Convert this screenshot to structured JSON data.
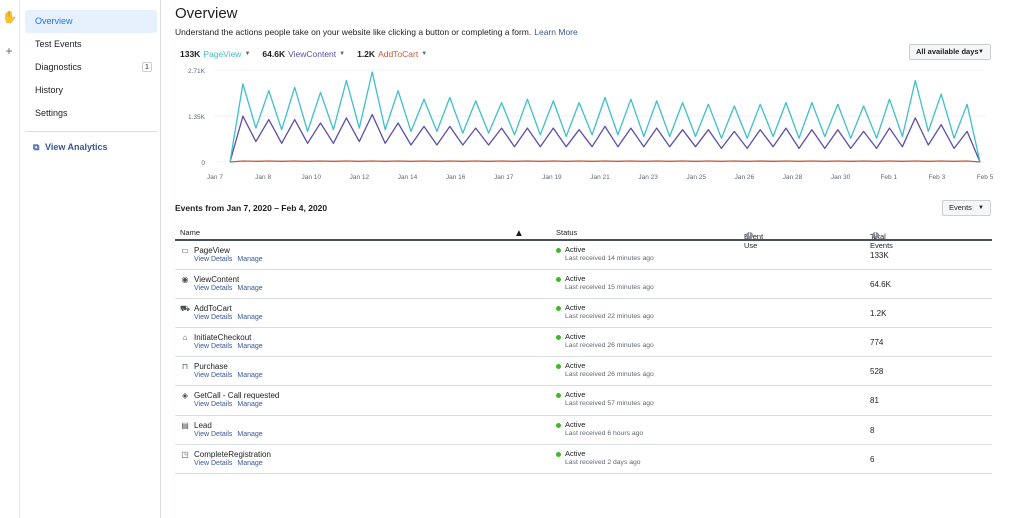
{
  "sidebar": {
    "items": [
      {
        "label": "Overview",
        "active": true
      },
      {
        "label": "Test Events"
      },
      {
        "label": "Diagnostics",
        "badge": "1"
      },
      {
        "label": "History"
      },
      {
        "label": "Settings"
      }
    ],
    "analytics_link": "View Analytics"
  },
  "header": {
    "title": "Overview",
    "subtitle": "Understand the actions people take on your website like clicking a button or completing a form.",
    "learn_more": "Learn More"
  },
  "metrics": [
    {
      "value": "133K",
      "label": "PageView",
      "color": "#3fbfc9"
    },
    {
      "value": "64.6K",
      "label": "ViewContent",
      "color": "#5b4fa8"
    },
    {
      "value": "1.2K",
      "label": "AddToCart",
      "color": "#c85a3c"
    }
  ],
  "date_filter": "All available days",
  "chart_data": {
    "type": "line",
    "y_ticks": [
      "2.71K",
      "1.35K",
      "0"
    ],
    "ylim": [
      0,
      2710
    ],
    "x_ticks": [
      "Jan 7",
      "Jan 8",
      "Jan 10",
      "Jan 12",
      "Jan 14",
      "Jan 16",
      "Jan 17",
      "Jan 19",
      "Jan 21",
      "Jan 23",
      "Jan 25",
      "Jan 26",
      "Jan 28",
      "Jan 30",
      "Feb 1",
      "Feb 3",
      "Feb 5"
    ],
    "series": [
      {
        "name": "PageView",
        "color": "#3fbfc9",
        "values": [
          0,
          2300,
          1000,
          2100,
          950,
          2200,
          900,
          2050,
          950,
          2400,
          1000,
          2650,
          950,
          2100,
          900,
          1850,
          900,
          1900,
          850,
          1800,
          850,
          1750,
          800,
          1850,
          800,
          1800,
          750,
          1750,
          800,
          1900,
          800,
          1850,
          750,
          1800,
          750,
          1750,
          750,
          1700,
          700,
          1650,
          700,
          1700,
          750,
          1750,
          700,
          1750,
          750,
          1700,
          700,
          1650,
          700,
          1850,
          750,
          2400,
          900,
          2000,
          700,
          1700,
          0
        ]
      },
      {
        "name": "ViewContent",
        "color": "#5b4fa8",
        "values": [
          0,
          1350,
          600,
          1250,
          550,
          1250,
          550,
          1150,
          550,
          1300,
          600,
          1400,
          550,
          1150,
          500,
          1050,
          500,
          1050,
          500,
          1000,
          500,
          1000,
          450,
          1000,
          450,
          1000,
          450,
          950,
          450,
          1050,
          450,
          1000,
          450,
          1000,
          450,
          950,
          450,
          950,
          400,
          900,
          400,
          950,
          450,
          1000,
          400,
          950,
          400,
          950,
          400,
          900,
          400,
          1000,
          450,
          1300,
          500,
          1100,
          400,
          900,
          0
        ]
      },
      {
        "name": "AddToCart",
        "color": "#c85a3c",
        "values": [
          0,
          30,
          20,
          30,
          20,
          30,
          20,
          30,
          20,
          30,
          20,
          30,
          20,
          30,
          20,
          30,
          20,
          30,
          20,
          30,
          20,
          30,
          20,
          30,
          20,
          30,
          20,
          30,
          20,
          30,
          20,
          30,
          20,
          30,
          20,
          30,
          20,
          30,
          20,
          30,
          20,
          30,
          20,
          30,
          20,
          30,
          20,
          30,
          20,
          30,
          20,
          30,
          20,
          30,
          20,
          30,
          20,
          30,
          0
        ]
      }
    ]
  },
  "events_section": {
    "title": "Events from Jan 7, 2020 – Feb 4, 2020",
    "dropdown": "Events",
    "columns": {
      "name": "Name",
      "status": "Status",
      "event_use": "Event Use",
      "total": "Total Events"
    },
    "link_view": "View Details",
    "link_manage": "Manage",
    "rows": [
      {
        "name": "PageView",
        "icon": "page-icon",
        "status": "Active",
        "received": "Last received 14 minutes ago",
        "total": "133K"
      },
      {
        "name": "ViewContent",
        "icon": "eye-icon",
        "status": "Active",
        "received": "Last received 15 minutes ago",
        "total": "64.6K"
      },
      {
        "name": "AddToCart",
        "icon": "cart-icon",
        "status": "Active",
        "received": "Last received 22 minutes ago",
        "total": "1.2K"
      },
      {
        "name": "InitiateCheckout",
        "icon": "basket-icon",
        "status": "Active",
        "received": "Last received 26 minutes ago",
        "total": "774"
      },
      {
        "name": "Purchase",
        "icon": "bag-icon",
        "status": "Active",
        "received": "Last received 26 minutes ago",
        "total": "528"
      },
      {
        "name": "GetCall - Call requested",
        "icon": "tag-icon",
        "status": "Active",
        "received": "Last received 57 minutes ago",
        "total": "81"
      },
      {
        "name": "Lead",
        "icon": "id-card-icon",
        "status": "Active",
        "received": "Last received 6 hours ago",
        "total": "8"
      },
      {
        "name": "CompleteRegistration",
        "icon": "form-icon",
        "status": "Active",
        "received": "Last received 2 days ago",
        "total": "6"
      }
    ]
  }
}
